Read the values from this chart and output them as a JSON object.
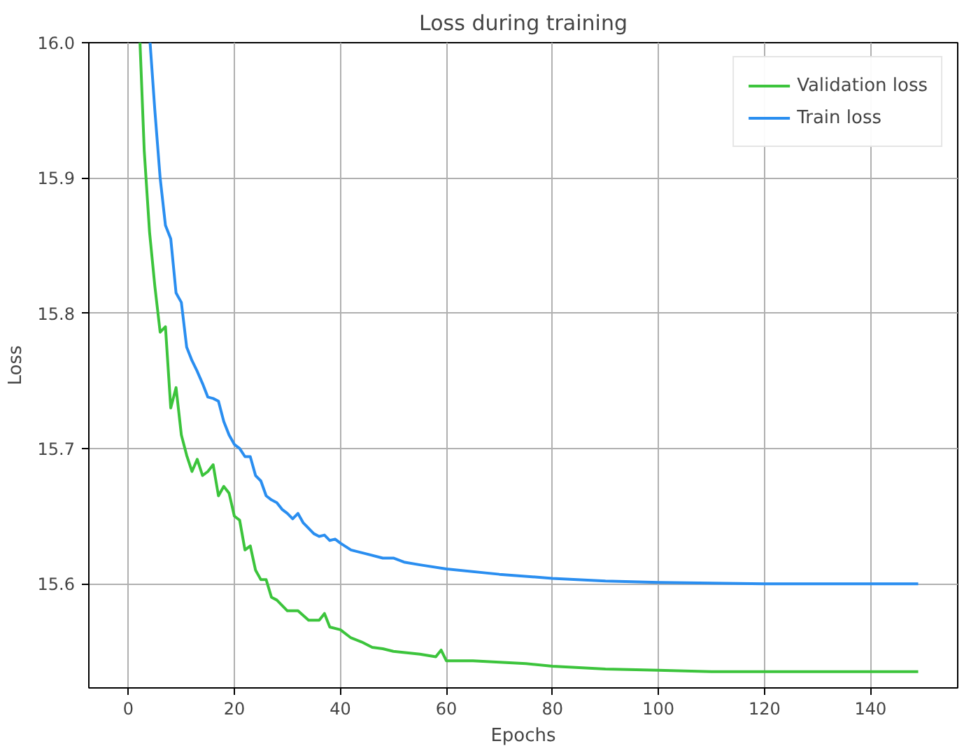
{
  "chart_data": {
    "type": "line",
    "title": "Loss during training",
    "xlabel": "Epochs",
    "ylabel": "Loss",
    "xlim": [
      -7.45,
      156.45
    ],
    "ylim": [
      15.523,
      16.0
    ],
    "xticks": [
      0,
      20,
      40,
      60,
      80,
      100,
      120,
      140
    ],
    "yticks": [
      {
        "value": 15.6,
        "label": "15.6"
      },
      {
        "value": 15.7,
        "label": "15.7"
      },
      {
        "value": 15.8,
        "label": "15.8"
      },
      {
        "value": 15.9,
        "label": "15.9"
      },
      {
        "value": 16.0,
        "label": "16.0"
      }
    ],
    "grid": true,
    "legend": "top right",
    "line_style": "solid",
    "marker": "none",
    "series": [
      {
        "name": "Validation loss",
        "color": "#3cc43c",
        "x": [
          2.2,
          3,
          4,
          5,
          6,
          7,
          8,
          9,
          10,
          11,
          12,
          13,
          14,
          15,
          16,
          17,
          18,
          19,
          20,
          21,
          22,
          23,
          24,
          25,
          26,
          27,
          28,
          30,
          32,
          34,
          36,
          37,
          38,
          40,
          42,
          44,
          46,
          48,
          50,
          55,
          58,
          59,
          60,
          65,
          70,
          75,
          80,
          90,
          100,
          110,
          120,
          130,
          149
        ],
        "values": [
          16.0,
          15.92,
          15.86,
          15.82,
          15.786,
          15.79,
          15.73,
          15.745,
          15.71,
          15.695,
          15.683,
          15.692,
          15.68,
          15.683,
          15.688,
          15.665,
          15.672,
          15.667,
          15.65,
          15.647,
          15.625,
          15.628,
          15.61,
          15.603,
          15.603,
          15.59,
          15.588,
          15.58,
          15.58,
          15.573,
          15.573,
          15.578,
          15.568,
          15.566,
          15.56,
          15.557,
          15.553,
          15.552,
          15.55,
          15.548,
          15.546,
          15.551,
          15.543,
          15.543,
          15.542,
          15.541,
          15.539,
          15.537,
          15.536,
          15.535,
          15.535,
          15.535,
          15.535
        ]
      },
      {
        "name": "Train loss",
        "color": "#2a8ef0",
        "x": [
          4.1,
          5,
          6,
          7,
          8,
          9,
          10,
          11,
          12,
          13,
          14,
          15,
          16,
          17,
          18,
          19,
          20,
          21,
          22,
          23,
          24,
          25,
          26,
          27,
          28,
          29,
          30,
          31,
          32,
          33,
          35,
          36,
          37,
          38,
          39,
          40,
          42,
          45,
          48,
          50,
          52,
          55,
          60,
          70,
          80,
          90,
          100,
          120,
          149
        ],
        "values": [
          16.0,
          15.95,
          15.9,
          15.865,
          15.855,
          15.815,
          15.808,
          15.775,
          15.765,
          15.757,
          15.748,
          15.738,
          15.737,
          15.735,
          15.72,
          15.71,
          15.703,
          15.7,
          15.694,
          15.694,
          15.68,
          15.676,
          15.665,
          15.662,
          15.66,
          15.655,
          15.652,
          15.648,
          15.652,
          15.645,
          15.637,
          15.635,
          15.636,
          15.632,
          15.633,
          15.63,
          15.625,
          15.622,
          15.619,
          15.619,
          15.616,
          15.614,
          15.611,
          15.607,
          15.604,
          15.602,
          15.601,
          15.6,
          15.6
        ]
      }
    ]
  }
}
